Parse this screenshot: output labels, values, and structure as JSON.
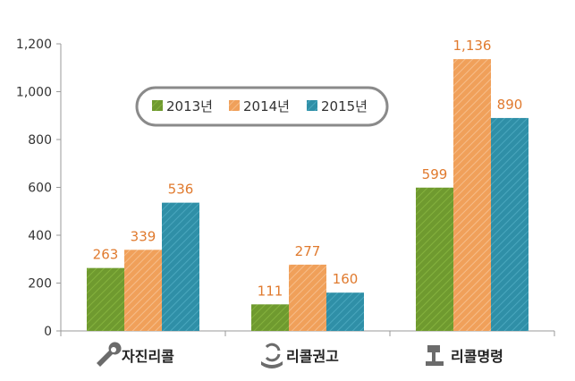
{
  "chart_data": {
    "type": "bar",
    "categories": [
      "자진리콜",
      "리콜권고",
      "리콜명령"
    ],
    "category_icons": [
      "wrench-icon",
      "recycle-hand-icon",
      "gavel-icon"
    ],
    "series": [
      {
        "name": "2013년",
        "values": [
          263,
          111,
          599
        ],
        "color": "#6f9a2f",
        "pattern": "#85b23e"
      },
      {
        "name": "2014년",
        "values": [
          339,
          277,
          1136
        ],
        "color": "#f0a05a",
        "pattern": "#f6bd8a"
      },
      {
        "name": "2015년",
        "values": [
          536,
          160,
          890
        ],
        "color": "#2f8fa7",
        "pattern": "#4aa7be"
      }
    ],
    "data_labels": [
      [
        "263",
        "111",
        "599"
      ],
      [
        "339",
        "277",
        "1,136"
      ],
      [
        "536",
        "160",
        "890"
      ]
    ],
    "ylim": [
      0,
      1200
    ],
    "yticks": [
      0,
      200,
      400,
      600,
      800,
      1000,
      1200
    ],
    "ytick_labels": [
      "0",
      "200",
      "400",
      "600",
      "800",
      "1,000",
      "1,200"
    ],
    "label_color": "#e07a2e",
    "legend_position": "top-center",
    "grid": false,
    "title": "",
    "xlabel": "",
    "ylabel": ""
  }
}
